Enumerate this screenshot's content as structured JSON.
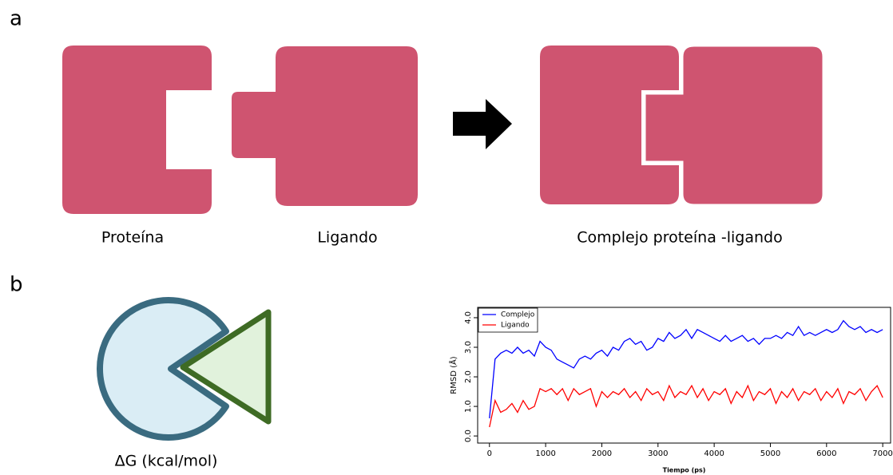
{
  "panel_a": {
    "letter": "a",
    "labels": [
      "Proteína",
      "Ligando",
      "Complejo proteína -ligando"
    ]
  },
  "panel_b": {
    "letter": "b",
    "label": "ΔG (kcal/mol)"
  },
  "chart_data": {
    "type": "line",
    "xlabel": "Tiempo (ps)",
    "ylabel": "RMSD (Å)",
    "x": [
      0,
      100,
      200,
      300,
      400,
      500,
      600,
      700,
      800,
      900,
      1000,
      1100,
      1200,
      1300,
      1400,
      1500,
      1600,
      1700,
      1800,
      1900,
      2000,
      2100,
      2200,
      2300,
      2400,
      2500,
      2600,
      2700,
      2800,
      2900,
      3000,
      3100,
      3200,
      3300,
      3400,
      3500,
      3600,
      3700,
      3800,
      3900,
      4000,
      4100,
      4200,
      4300,
      4400,
      4500,
      4600,
      4700,
      4800,
      4900,
      5000,
      5100,
      5200,
      5300,
      5400,
      5500,
      5600,
      5700,
      5800,
      5900,
      6000,
      6100,
      6200,
      6300,
      6400,
      6500,
      6600,
      6700,
      6800,
      6900,
      7000
    ],
    "series": [
      {
        "name": "Complejo",
        "color": "#0000ff",
        "values": [
          0.6,
          2.6,
          2.8,
          2.9,
          2.8,
          3.0,
          2.8,
          2.9,
          2.7,
          3.2,
          3.0,
          2.9,
          2.6,
          2.5,
          2.4,
          2.3,
          2.6,
          2.7,
          2.6,
          2.8,
          2.9,
          2.7,
          3.0,
          2.9,
          3.2,
          3.3,
          3.1,
          3.2,
          2.9,
          3.0,
          3.3,
          3.2,
          3.5,
          3.3,
          3.4,
          3.6,
          3.3,
          3.6,
          3.5,
          3.4,
          3.3,
          3.2,
          3.4,
          3.2,
          3.3,
          3.4,
          3.2,
          3.3,
          3.1,
          3.3,
          3.3,
          3.4,
          3.3,
          3.5,
          3.4,
          3.7,
          3.4,
          3.5,
          3.4,
          3.5,
          3.6,
          3.5,
          3.6,
          3.9,
          3.7,
          3.6,
          3.7,
          3.5,
          3.6,
          3.5,
          3.6
        ]
      },
      {
        "name": "Ligando",
        "color": "#ff0000",
        "values": [
          0.3,
          1.2,
          0.8,
          0.9,
          1.1,
          0.8,
          1.2,
          0.9,
          1.0,
          1.6,
          1.5,
          1.6,
          1.4,
          1.6,
          1.2,
          1.6,
          1.4,
          1.5,
          1.6,
          1.0,
          1.5,
          1.3,
          1.5,
          1.4,
          1.6,
          1.3,
          1.5,
          1.2,
          1.6,
          1.4,
          1.5,
          1.2,
          1.7,
          1.3,
          1.5,
          1.4,
          1.7,
          1.3,
          1.6,
          1.2,
          1.5,
          1.4,
          1.6,
          1.1,
          1.5,
          1.3,
          1.7,
          1.2,
          1.5,
          1.4,
          1.6,
          1.1,
          1.5,
          1.3,
          1.6,
          1.2,
          1.5,
          1.4,
          1.6,
          1.2,
          1.5,
          1.3,
          1.6,
          1.1,
          1.5,
          1.4,
          1.6,
          1.2,
          1.5,
          1.7,
          1.3
        ]
      }
    ],
    "xlim": [
      -210,
      7140
    ],
    "ylim": [
      -0.24,
      4.35
    ],
    "xticks": [
      0,
      1000,
      2000,
      3000,
      4000,
      5000,
      6000,
      7000
    ],
    "yticks": [
      {
        "value": 0,
        "label": "0.0"
      },
      {
        "value": 1,
        "label": "1.0"
      },
      {
        "value": 2,
        "label": "2.0"
      },
      {
        "value": 3,
        "label": "3.0"
      },
      {
        "value": 4,
        "label": "4.0"
      }
    ],
    "legend": "upper left"
  }
}
